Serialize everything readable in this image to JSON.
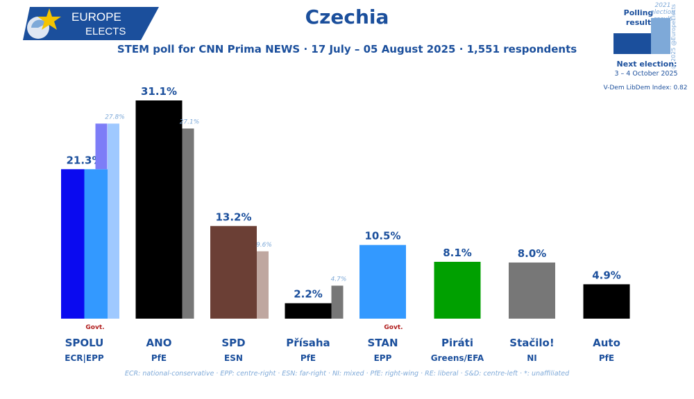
{
  "brand": {
    "line1": "EUROPE",
    "line2": "ELECTS"
  },
  "header": {
    "title": "Czechia",
    "subtitle": "STEM poll for CNN Prima NEWS · 17 July – 05 August 2025 · 1,551 respondents"
  },
  "legend": {
    "polling_label": "Polling result",
    "election_label": "2021 election result",
    "next_election_label": "Next election:",
    "next_election_date": "3 – 4 October 2025",
    "vdem": "V-Dem LibDem Index: 0.82",
    "copyright": "© 2025 @EuropeElects"
  },
  "footnote": "ECR: national-conservative · EPP: centre-right · ESN: far-right · NI: mixed · PfE: right-wing · RE: liberal · S&D: centre-left · *: unaffiliated",
  "colors": {
    "brand_blue": "#1b4f9c",
    "light_text": "#7ea9d8",
    "govt_red": "#b01c1c"
  },
  "chart_data": {
    "type": "bar",
    "ylim": [
      0,
      32
    ],
    "categories": [
      "SPOLU",
      "ANO",
      "SPD",
      "Přísaha",
      "STAN",
      "Piráti",
      "Stačilo!",
      "Auto"
    ],
    "groups": [
      "ECR|EPP",
      "PfE",
      "ESN",
      "PfE",
      "EPP",
      "Greens/EFA",
      "NI",
      "PfE"
    ],
    "series": [
      {
        "name": "Polling result",
        "values": [
          21.3,
          31.1,
          13.2,
          2.2,
          10.5,
          8.1,
          8.0,
          4.9
        ]
      },
      {
        "name": "2021 election result",
        "values": [
          27.8,
          27.1,
          9.6,
          4.7,
          null,
          null,
          null,
          null
        ]
      }
    ],
    "value_labels": [
      "21.3%",
      "31.1%",
      "13.2%",
      "2.2%",
      "10.5%",
      "8.1%",
      "8.0%",
      "4.9%"
    ],
    "previous_labels": [
      "27.8%",
      "27.1%",
      "9.6%",
      "4.7%",
      null,
      null,
      null,
      null
    ],
    "govt_label": "Govt.",
    "govt": [
      true,
      false,
      false,
      false,
      true,
      false,
      false,
      false
    ],
    "bar_colors": [
      "#0a0af0",
      "#000000",
      "#6b3f35",
      "#000000",
      "#3399ff",
      "#00a000",
      "#777777",
      "#000000"
    ],
    "bar_colors_secondary": [
      "#3399ff",
      null,
      null,
      null,
      null,
      null,
      null,
      null
    ],
    "prev_colors": [
      "#9fc9ff",
      "#777777",
      "#bfa7a0",
      "#777777",
      null,
      null,
      null,
      null
    ],
    "prev_colors_secondary": [
      "#7d7df7",
      null,
      null,
      null,
      null,
      null,
      null,
      null
    ]
  }
}
